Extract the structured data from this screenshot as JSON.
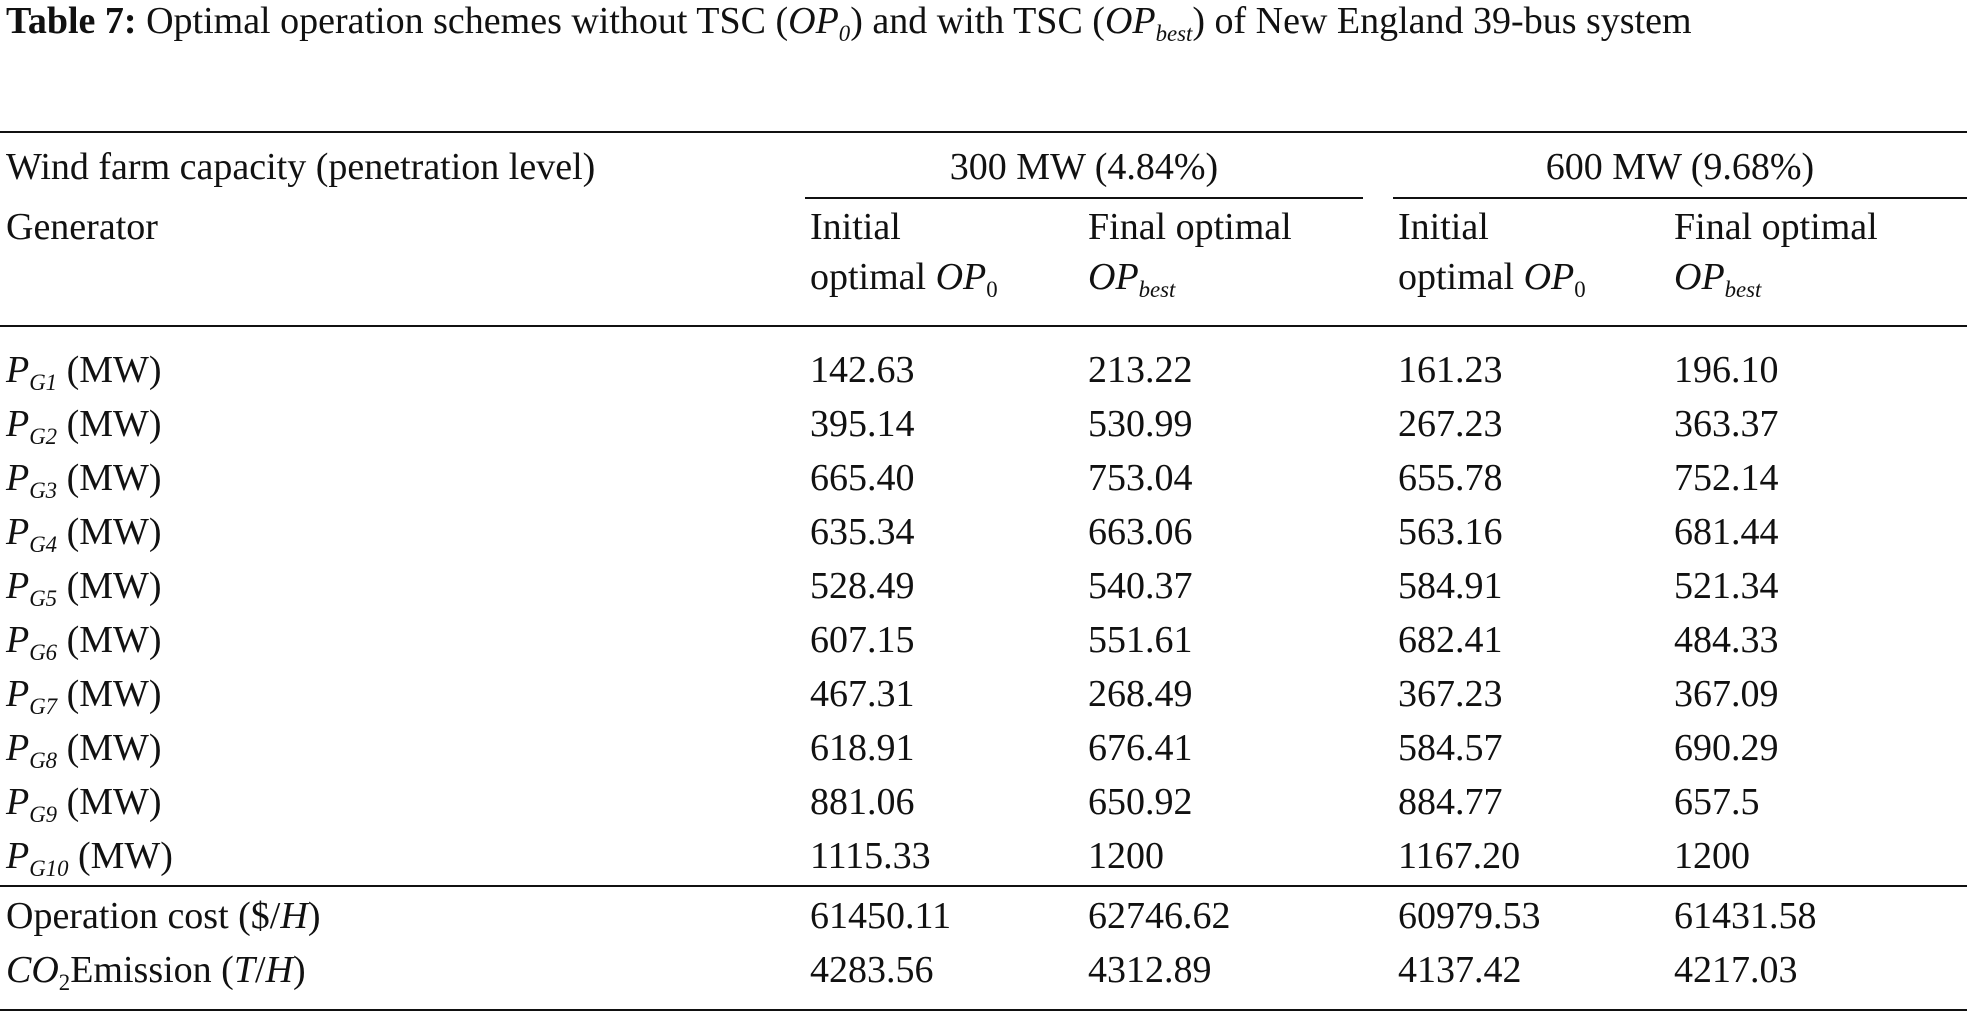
{
  "caption": {
    "label": "Table 7:",
    "text_1": " Optimal operation schemes without TSC (",
    "op0_main": "OP",
    "op0_sub": "0",
    "text_2": ") and with TSC (",
    "opbest_main": "OP",
    "opbest_sub": "best",
    "text_3": ") of New England 39-bus system"
  },
  "header": {
    "wind_farm_label": "Wind farm capacity (penetration level)",
    "generator_label": "Generator",
    "group_300": "300 MW (4.84%)",
    "group_600": "600 MW (9.68%)",
    "initial_line1": "Initial",
    "initial_line2": "optimal ",
    "initial_op": "OP",
    "initial_sub": "0",
    "final_line1": "Final optimal",
    "final_op": "OP",
    "final_sub": "best"
  },
  "generator_rows": [
    {
      "p": "P",
      "sub": "G1",
      "unit": " (MW)",
      "v1": "142.63",
      "v2": "213.22",
      "v3": "161.23",
      "v4": "196.10"
    },
    {
      "p": "P",
      "sub": "G2",
      "unit": " (MW)",
      "v1": "395.14",
      "v2": "530.99",
      "v3": "267.23",
      "v4": "363.37"
    },
    {
      "p": "P",
      "sub": "G3",
      "unit": " (MW)",
      "v1": "665.40",
      "v2": "753.04",
      "v3": "655.78",
      "v4": "752.14"
    },
    {
      "p": "P",
      "sub": "G4",
      "unit": " (MW)",
      "v1": "635.34",
      "v2": "663.06",
      "v3": "563.16",
      "v4": "681.44"
    },
    {
      "p": "P",
      "sub": "G5",
      "unit": " (MW)",
      "v1": "528.49",
      "v2": "540.37",
      "v3": "584.91",
      "v4": "521.34"
    },
    {
      "p": "P",
      "sub": "G6",
      "unit": " (MW)",
      "v1": "607.15",
      "v2": "551.61",
      "v3": "682.41",
      "v4": "484.33"
    },
    {
      "p": "P",
      "sub": "G7",
      "unit": " (MW)",
      "v1": "467.31",
      "v2": "268.49",
      "v3": "367.23",
      "v4": "367.09"
    },
    {
      "p": "P",
      "sub": "G8",
      "unit": " (MW)",
      "v1": "618.91",
      "v2": "676.41",
      "v3": "584.57",
      "v4": "690.29"
    },
    {
      "p": "P",
      "sub": "G9",
      "unit": " (MW)",
      "v1": "881.06",
      "v2": "650.92",
      "v3": "884.77",
      "v4": "657.5"
    },
    {
      "p": "P",
      "sub": "G10",
      "unit": " (MW)",
      "v1": "1115.33",
      "v2": "1200",
      "v3": "1167.20",
      "v4": "1200"
    }
  ],
  "summary_rows": {
    "cost": {
      "label_1": "Operation cost ($/",
      "label_h": "H",
      "label_2": ")",
      "v1": "61450.11",
      "v2": "62746.62",
      "v3": "60979.53",
      "v4": "61431.58"
    },
    "emission": {
      "co": "CO",
      "sub": "2",
      "label_1": "Emission (",
      "label_t": "T",
      "label_slash": "/",
      "label_h": "H",
      "label_2": ")",
      "v1": "4283.56",
      "v2": "4312.89",
      "v3": "4137.42",
      "v4": "4217.03"
    }
  }
}
